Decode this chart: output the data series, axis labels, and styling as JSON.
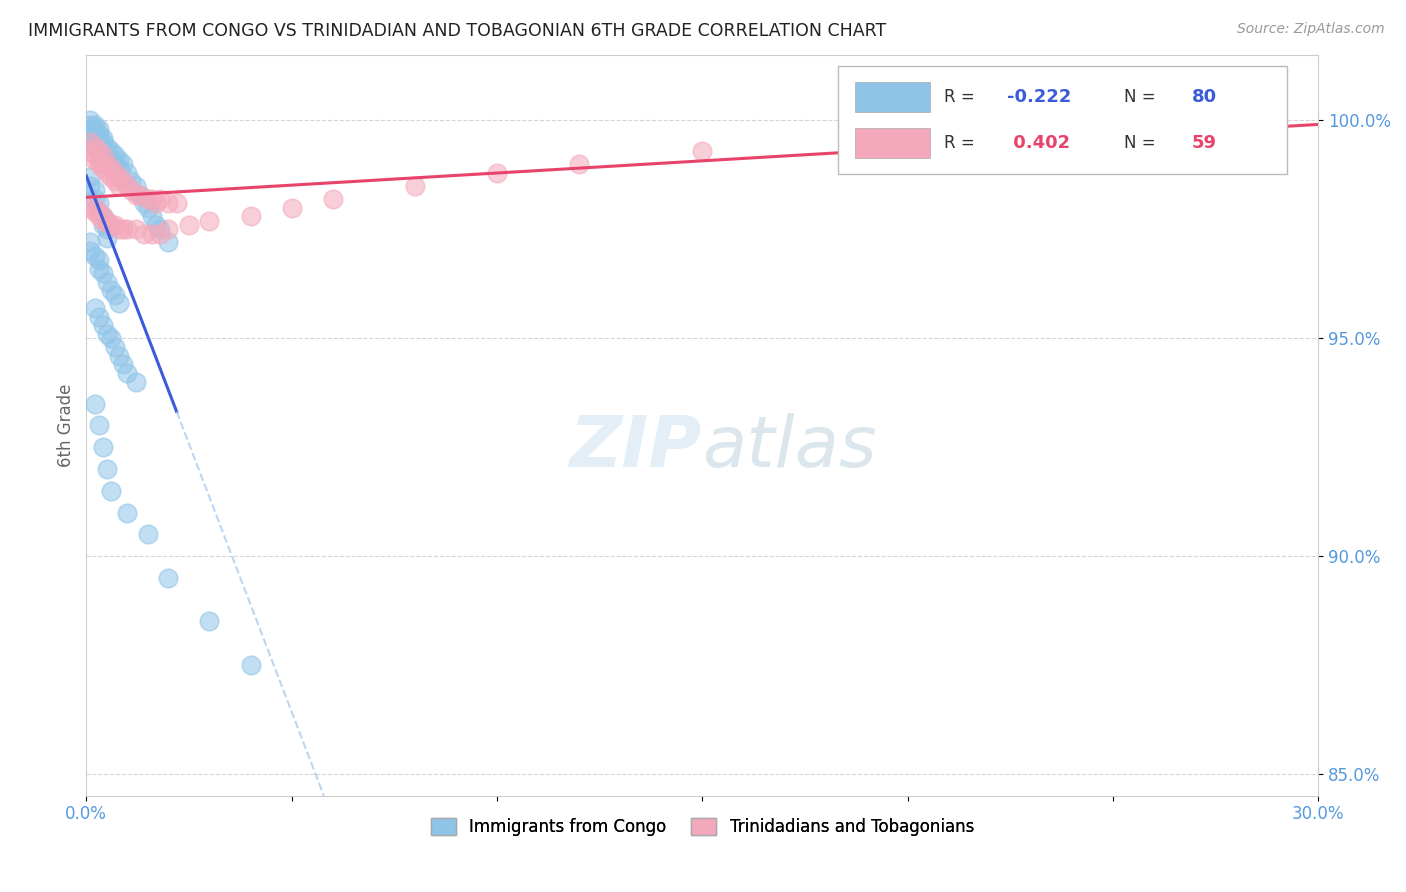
{
  "title": "IMMIGRANTS FROM CONGO VS TRINIDADIAN AND TOBAGONIAN 6TH GRADE CORRELATION CHART",
  "source": "Source: ZipAtlas.com",
  "ylabel_label": "6th Grade",
  "legend_r_congo": "-0.222",
  "legend_n_congo": "80",
  "legend_r_tnt": "0.402",
  "legend_n_tnt": "59",
  "color_congo": "#8ec4e8",
  "color_tnt": "#f4a8bb",
  "line_color_congo": "#3b5bdb",
  "line_color_tnt": "#e8436a",
  "background_color": "#ffffff",
  "grid_color": "#cccccc",
  "axis_label_color": "#5599dd",
  "xmin": 0.0,
  "xmax": 0.3,
  "ymin": 0.845,
  "ymax": 1.015,
  "ytick_positions": [
    1.0,
    0.95,
    0.9,
    0.85
  ],
  "ytick_labels": [
    "100.0%",
    "95.0%",
    "90.0%",
    "85.0%"
  ],
  "congo_x": [
    0.001,
    0.001,
    0.001,
    0.001,
    0.001,
    0.002,
    0.002,
    0.002,
    0.002,
    0.002,
    0.002,
    0.003,
    0.003,
    0.003,
    0.003,
    0.003,
    0.004,
    0.004,
    0.004,
    0.004,
    0.005,
    0.005,
    0.005,
    0.006,
    0.006,
    0.007,
    0.007,
    0.008,
    0.008,
    0.009,
    0.01,
    0.011,
    0.012,
    0.013,
    0.014,
    0.015,
    0.016,
    0.017,
    0.018,
    0.02,
    0.001,
    0.001,
    0.002,
    0.002,
    0.003,
    0.003,
    0.004,
    0.004,
    0.005,
    0.005,
    0.001,
    0.001,
    0.002,
    0.003,
    0.003,
    0.004,
    0.005,
    0.006,
    0.007,
    0.008,
    0.002,
    0.003,
    0.004,
    0.005,
    0.006,
    0.007,
    0.008,
    0.009,
    0.01,
    0.012,
    0.002,
    0.003,
    0.004,
    0.005,
    0.006,
    0.01,
    0.015,
    0.02,
    0.03,
    0.04
  ],
  "congo_y": [
    1.0,
    0.999,
    0.998,
    0.997,
    0.996,
    0.999,
    0.998,
    0.997,
    0.996,
    0.995,
    0.994,
    0.998,
    0.997,
    0.996,
    0.995,
    0.993,
    0.996,
    0.995,
    0.994,
    0.992,
    0.994,
    0.993,
    0.991,
    0.993,
    0.991,
    0.992,
    0.99,
    0.991,
    0.989,
    0.99,
    0.988,
    0.986,
    0.985,
    0.983,
    0.981,
    0.98,
    0.978,
    0.976,
    0.975,
    0.972,
    0.987,
    0.985,
    0.984,
    0.982,
    0.981,
    0.979,
    0.978,
    0.976,
    0.975,
    0.973,
    0.972,
    0.97,
    0.969,
    0.968,
    0.966,
    0.965,
    0.963,
    0.961,
    0.96,
    0.958,
    0.957,
    0.955,
    0.953,
    0.951,
    0.95,
    0.948,
    0.946,
    0.944,
    0.942,
    0.94,
    0.935,
    0.93,
    0.925,
    0.92,
    0.915,
    0.91,
    0.905,
    0.895,
    0.885,
    0.875
  ],
  "tnt_x": [
    0.001,
    0.001,
    0.002,
    0.002,
    0.002,
    0.003,
    0.003,
    0.003,
    0.004,
    0.004,
    0.004,
    0.005,
    0.005,
    0.006,
    0.006,
    0.007,
    0.007,
    0.008,
    0.008,
    0.009,
    0.01,
    0.011,
    0.012,
    0.013,
    0.015,
    0.016,
    0.017,
    0.018,
    0.02,
    0.022,
    0.001,
    0.002,
    0.002,
    0.003,
    0.003,
    0.004,
    0.004,
    0.005,
    0.006,
    0.007,
    0.008,
    0.009,
    0.01,
    0.012,
    0.014,
    0.016,
    0.018,
    0.02,
    0.025,
    0.03,
    0.04,
    0.05,
    0.06,
    0.08,
    0.1,
    0.12,
    0.15,
    0.2,
    0.25
  ],
  "tnt_y": [
    0.995,
    0.993,
    0.994,
    0.992,
    0.991,
    0.993,
    0.991,
    0.99,
    0.992,
    0.99,
    0.989,
    0.99,
    0.988,
    0.989,
    0.987,
    0.988,
    0.986,
    0.987,
    0.985,
    0.986,
    0.985,
    0.984,
    0.983,
    0.983,
    0.982,
    0.982,
    0.981,
    0.982,
    0.981,
    0.981,
    0.98,
    0.98,
    0.979,
    0.979,
    0.978,
    0.978,
    0.977,
    0.977,
    0.976,
    0.976,
    0.975,
    0.975,
    0.975,
    0.975,
    0.974,
    0.974,
    0.974,
    0.975,
    0.976,
    0.977,
    0.978,
    0.98,
    0.982,
    0.985,
    0.988,
    0.99,
    0.993,
    0.997,
    1.0
  ]
}
